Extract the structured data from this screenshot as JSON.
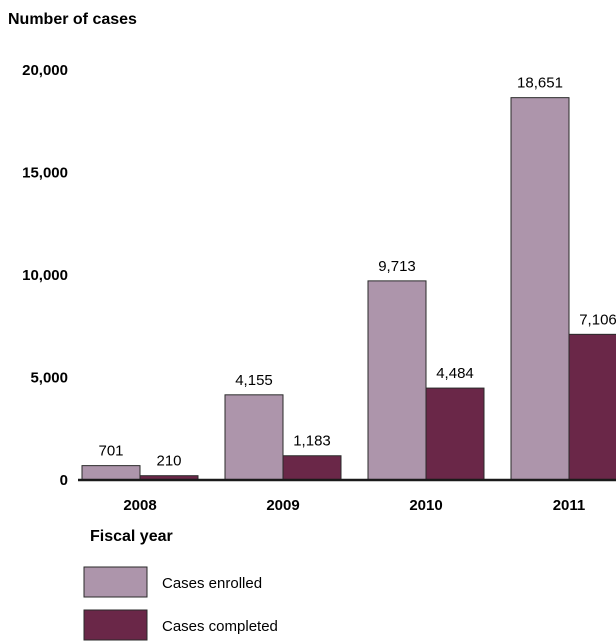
{
  "chart_data": {
    "type": "bar",
    "ylabel": "Number of cases",
    "xlabel": "Fiscal year",
    "categories": [
      "2008",
      "2009",
      "2010",
      "2011"
    ],
    "yticks": [
      "0",
      "5,000",
      "10,000",
      "15,000",
      "20,000"
    ],
    "ylim": [
      0,
      20000
    ],
    "grid": false,
    "legend_position": "bottom-left",
    "series": [
      {
        "name": "Cases enrolled",
        "color": "#ad95ab",
        "values": [
          701,
          4155,
          9713,
          18651
        ],
        "labels": [
          "701",
          "4,155",
          "9,713",
          "18,651"
        ]
      },
      {
        "name": "Cases completed",
        "color": "#6a2748",
        "values": [
          210,
          1183,
          4484,
          7106
        ],
        "labels": [
          "210",
          "1,183",
          "4,484",
          "7,106"
        ]
      }
    ]
  }
}
